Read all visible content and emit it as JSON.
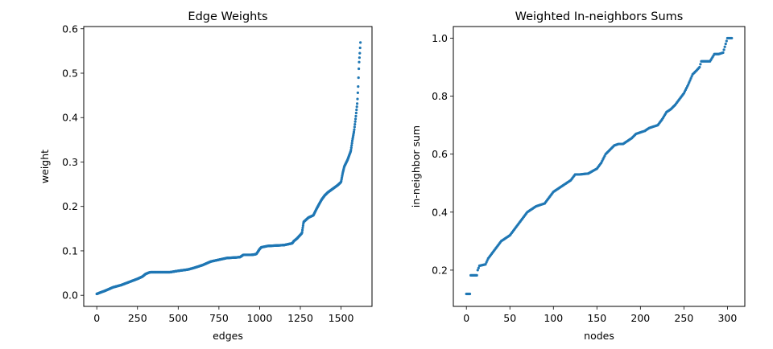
{
  "chart_data": [
    {
      "type": "scatter",
      "title": "Edge Weights",
      "xlabel": "edges",
      "ylabel": "weight",
      "xlim": [
        -80,
        1690
      ],
      "ylim": [
        -0.025,
        0.605
      ],
      "xticks": [
        0,
        250,
        500,
        750,
        1000,
        1250,
        1500
      ],
      "yticks": [
        0.0,
        0.1,
        0.2,
        0.3,
        0.4,
        0.5,
        0.6
      ],
      "ytick_labels": [
        "0.0",
        "0.1",
        "0.2",
        "0.3",
        "0.4",
        "0.5",
        "0.6"
      ],
      "color": "#1f77b4",
      "grid": false,
      "curve_x": [
        0,
        20,
        50,
        100,
        150,
        200,
        250,
        280,
        300,
        320,
        330,
        350,
        400,
        450,
        500,
        540,
        560,
        600,
        650,
        700,
        750,
        800,
        850,
        880,
        900,
        950,
        970,
        980,
        1000,
        1010,
        1050,
        1100,
        1150,
        1200,
        1210,
        1230,
        1260,
        1270,
        1300,
        1330,
        1350,
        1380,
        1400,
        1420,
        1450,
        1480,
        1500,
        1510,
        1520,
        1540,
        1560,
        1570,
        1580,
        1590,
        1600,
        1605,
        1610,
        1615,
        1620
      ],
      "curve_y": [
        0.003,
        0.006,
        0.01,
        0.018,
        0.023,
        0.03,
        0.037,
        0.042,
        0.048,
        0.051,
        0.052,
        0.052,
        0.052,
        0.052,
        0.055,
        0.057,
        0.058,
        0.062,
        0.068,
        0.076,
        0.08,
        0.084,
        0.085,
        0.086,
        0.091,
        0.091,
        0.092,
        0.093,
        0.104,
        0.108,
        0.111,
        0.112,
        0.113,
        0.117,
        0.122,
        0.128,
        0.14,
        0.165,
        0.175,
        0.18,
        0.195,
        0.215,
        0.225,
        0.232,
        0.24,
        0.248,
        0.255,
        0.275,
        0.29,
        0.305,
        0.325,
        0.35,
        0.37,
        0.4,
        0.435,
        0.47,
        0.52,
        0.545,
        0.575
      ],
      "n_points": 1620
    },
    {
      "type": "scatter",
      "title": "Weighted In-neighbors Sums",
      "xlabel": "nodes",
      "ylabel": "in-neighbor sum",
      "xlim": [
        -15,
        320
      ],
      "ylim": [
        0.075,
        1.04
      ],
      "xticks": [
        0,
        50,
        100,
        150,
        200,
        250,
        300
      ],
      "yticks": [
        0.2,
        0.4,
        0.6,
        0.8,
        1.0
      ],
      "ytick_labels": [
        "0.2",
        "0.4",
        "0.6",
        "0.8",
        "1.0"
      ],
      "color": "#1f77b4",
      "grid": false,
      "curve_x": [
        0,
        4,
        5,
        12,
        13,
        15,
        22,
        25,
        30,
        40,
        50,
        55,
        60,
        70,
        80,
        90,
        100,
        110,
        120,
        125,
        130,
        140,
        150,
        155,
        160,
        170,
        175,
        180,
        185,
        190,
        195,
        200,
        205,
        210,
        215,
        220,
        225,
        230,
        235,
        240,
        245,
        250,
        255,
        260,
        265,
        268,
        270,
        275,
        280,
        285,
        290,
        295,
        300,
        305
      ],
      "curve_y": [
        0.118,
        0.118,
        0.182,
        0.182,
        0.2,
        0.215,
        0.22,
        0.24,
        0.26,
        0.3,
        0.32,
        0.34,
        0.36,
        0.4,
        0.42,
        0.43,
        0.47,
        0.49,
        0.51,
        0.53,
        0.53,
        0.533,
        0.55,
        0.57,
        0.6,
        0.63,
        0.635,
        0.635,
        0.645,
        0.655,
        0.67,
        0.675,
        0.68,
        0.69,
        0.695,
        0.7,
        0.72,
        0.745,
        0.755,
        0.77,
        0.79,
        0.81,
        0.84,
        0.875,
        0.89,
        0.9,
        0.92,
        0.92,
        0.92,
        0.945,
        0.945,
        0.95,
        1.0,
        1.0
      ],
      "n_points": 306
    }
  ]
}
